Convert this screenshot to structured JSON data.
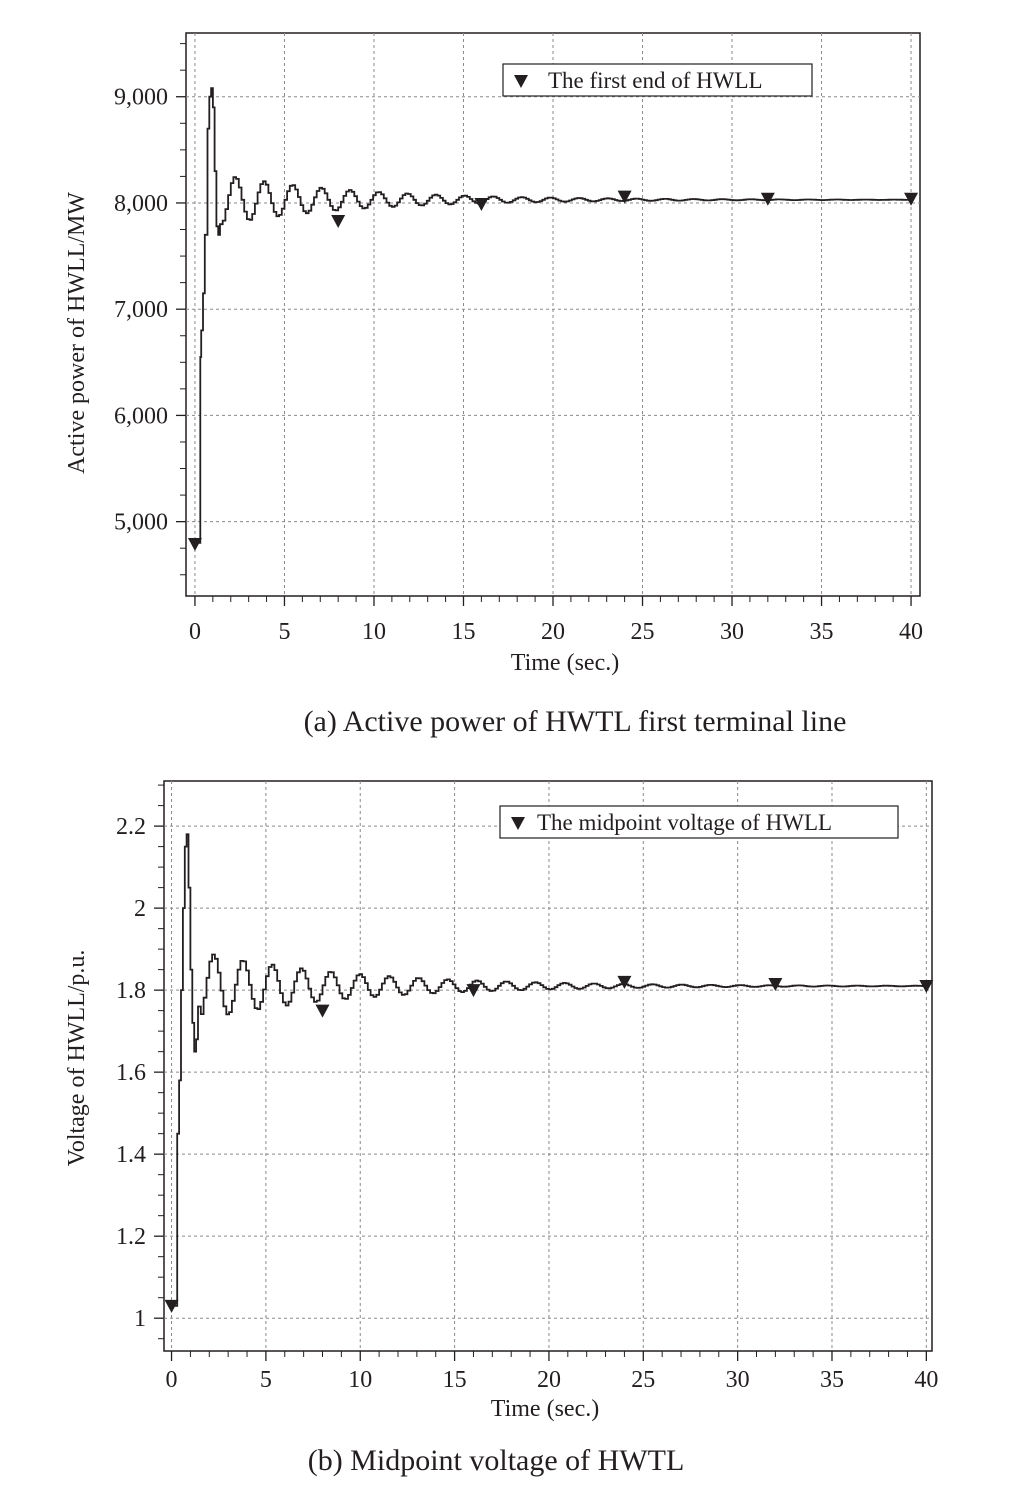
{
  "chart_data": [
    {
      "id": "a",
      "type": "line",
      "caption": "(a) Active power of HWTL first terminal line",
      "xlabel": "Time (sec.)",
      "ylabel": "Active power of HWLL/MW",
      "xlim": [
        -0.5,
        40.5
      ],
      "ylim": [
        4300,
        9600
      ],
      "xticks": [
        0,
        5,
        10,
        15,
        20,
        25,
        30,
        35,
        40
      ],
      "xtick_labels": [
        "0",
        "5",
        "10",
        "15",
        "20",
        "25",
        "30",
        "35",
        "40"
      ],
      "yticks": [
        5000,
        6000,
        7000,
        8000,
        9000
      ],
      "ytick_labels": [
        "5,000",
        "6,000",
        "7,000",
        "8,000",
        "9,000"
      ],
      "grid": true,
      "legend_position": "top-right",
      "series": [
        {
          "name": "The first end of HWLL",
          "marker": "triangle-down",
          "color": "#231f20",
          "steady": 8030,
          "response": {
            "x": [
              0,
              0.2,
              0.3,
              0.35,
              0.45,
              0.55,
              0.7,
              0.8,
              0.9,
              1.0,
              1.1,
              1.2,
              1.3,
              1.4
            ],
            "y": [
              4800,
              4800,
              6550,
              6800,
              7150,
              7700,
              8700,
              9000,
              9080,
              8900,
              8300,
              7780,
              7700,
              7800
            ]
          },
          "oscillation": {
            "t_start": 1.4,
            "t_end": 40,
            "period": 1.6,
            "amplitude": 240,
            "decay_time": 7.5,
            "step": 0.15
          },
          "markers_x": [
            0,
            8,
            16,
            24,
            32,
            40
          ],
          "markers_y": [
            4790,
            7830,
            7990,
            8060,
            8040,
            8040
          ]
        }
      ]
    },
    {
      "id": "b",
      "type": "line",
      "caption": "(b) Midpoint voltage of HWTL",
      "xlabel": "Time (sec.)",
      "ylabel": "Voltage of HWLL/p.u.",
      "xlim": [
        -0.4,
        40.3
      ],
      "ylim": [
        0.92,
        2.31
      ],
      "xticks": [
        0,
        5,
        10,
        15,
        20,
        25,
        30,
        35,
        40
      ],
      "xtick_labels": [
        "0",
        "5",
        "10",
        "15",
        "20",
        "25",
        "30",
        "35",
        "40"
      ],
      "yticks": [
        1,
        1.2,
        1.4,
        1.6,
        1.8,
        2,
        2.2
      ],
      "ytick_labels": [
        "1",
        "1.2",
        "1.4",
        "1.6",
        "1.8",
        "2",
        "2.2"
      ],
      "grid": true,
      "legend_position": "top-right",
      "series": [
        {
          "name": "The midpoint voltage of HWLL",
          "marker": "triangle-down",
          "color": "#231f20",
          "steady": 1.81,
          "response": {
            "x": [
              0,
              0.25,
              0.3,
              0.4,
              0.5,
              0.6,
              0.7,
              0.8,
              0.9,
              1.0,
              1.1,
              1.2,
              1.3,
              1.4
            ],
            "y": [
              1.03,
              1.03,
              1.45,
              1.58,
              1.8,
              2.0,
              2.15,
              2.18,
              2.05,
              1.85,
              1.72,
              1.65,
              1.68,
              1.76
            ]
          },
          "oscillation": {
            "t_start": 1.4,
            "t_end": 40,
            "period": 1.55,
            "amplitude": 0.085,
            "decay_time": 8,
            "step": 0.15
          },
          "markers_x": [
            0,
            8,
            16,
            24,
            32,
            40
          ],
          "markers_y": [
            1.03,
            1.75,
            1.8,
            1.82,
            1.815,
            1.81
          ]
        }
      ]
    }
  ]
}
